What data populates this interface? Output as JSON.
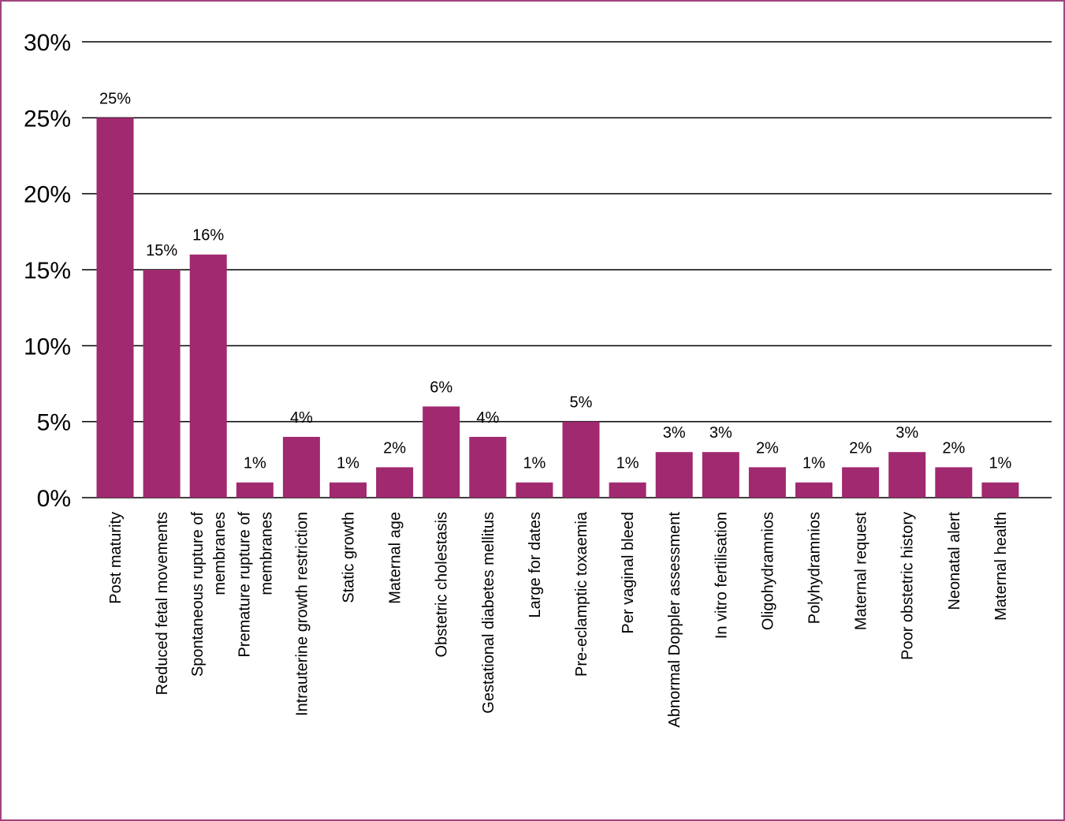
{
  "chart_data": {
    "type": "bar",
    "title": "",
    "xlabel": "",
    "ylabel": "",
    "ylim": [
      0,
      30
    ],
    "yticks": [
      0,
      5,
      10,
      15,
      20,
      25,
      30
    ],
    "ytick_suffix": "%",
    "grid": true,
    "bar_color": "#a0296f",
    "frame_color": "#a0447e",
    "categories": [
      [
        "Post maturity"
      ],
      [
        "Reduced fetal movements"
      ],
      [
        "Spontaneous rupture of",
        "membranes"
      ],
      [
        "Premature rupture of",
        "membranes"
      ],
      [
        "Intrauterine growth restriction"
      ],
      [
        "Static growth"
      ],
      [
        "Maternal age"
      ],
      [
        "Obstetric cholestasis"
      ],
      [
        "Gestational diabetes mellitus"
      ],
      [
        "Large for dates"
      ],
      [
        "Pre-eclamptic toxaemia"
      ],
      [
        "Per vaginal bleed"
      ],
      [
        "Abnormal Doppler assessment"
      ],
      [
        "In vitro fertilisation"
      ],
      [
        "Oligohydramnios"
      ],
      [
        "Polyhydramnios"
      ],
      [
        "Maternal request"
      ],
      [
        "Poor obstetric history"
      ],
      [
        "Neonatal alert"
      ],
      [
        "Maternal health"
      ]
    ],
    "values": [
      25,
      15,
      16,
      1,
      4,
      1,
      2,
      6,
      4,
      1,
      5,
      1,
      3,
      3,
      2,
      1,
      2,
      3,
      2,
      1
    ],
    "data_labels": [
      "25%",
      "15%",
      "16%",
      "1%",
      "4%",
      "1%",
      "2%",
      "6%",
      "4%",
      "1%",
      "5%",
      "1%",
      "3%",
      "3%",
      "2%",
      "1%",
      "2%",
      "3%",
      "2%",
      "1%"
    ]
  }
}
